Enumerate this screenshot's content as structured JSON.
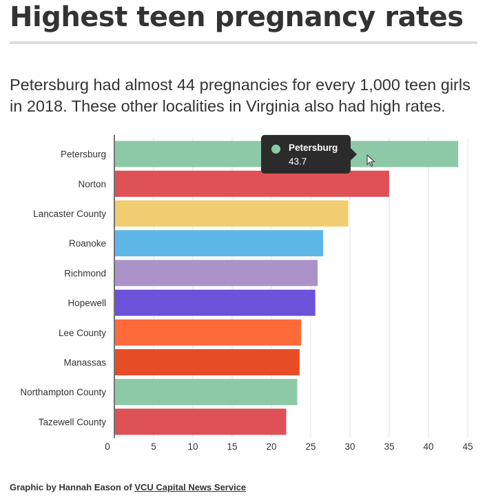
{
  "title": "Highest teen pregnancy rates",
  "subtitle": "Petersburg had almost 44 pregnancies for every 1,000 teen girls in 2018. These other localities in Virginia also had high rates.",
  "chart_data": {
    "type": "bar",
    "orientation": "horizontal",
    "categories": [
      "Petersburg",
      "Norton",
      "Lancaster County",
      "Roanoke",
      "Richmond",
      "Hopewell",
      "Lee County",
      "Manassas",
      "Northampton County",
      "Tazewell County"
    ],
    "values": [
      43.7,
      34.9,
      29.7,
      26.5,
      25.8,
      25.5,
      23.7,
      23.5,
      23.2,
      21.8
    ],
    "colors": [
      "#8ec9a7",
      "#dd5157",
      "#f0cd70",
      "#5cb7e6",
      "#ab93c9",
      "#6a53d8",
      "#ff6a3a",
      "#e64c26",
      "#8ec9a7",
      "#dd5157"
    ],
    "xlim": [
      0,
      45
    ],
    "xticks": [
      0,
      5,
      10,
      15,
      20,
      25,
      30,
      35,
      40,
      45
    ],
    "grid": true
  },
  "tooltip": {
    "name": "Petersburg",
    "value": "43.7",
    "color": "#8ec9a7"
  },
  "credit": {
    "prefix": "Graphic by Hannah Eason of ",
    "link": "VCU Capital News Service"
  }
}
